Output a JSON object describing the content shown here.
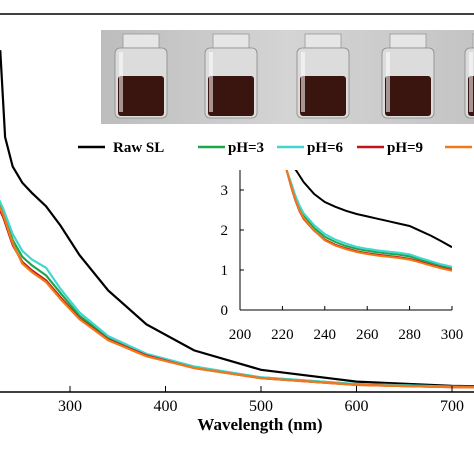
{
  "chart_data": [
    {
      "type": "line",
      "title": "",
      "xlabel": "Wavelength (nm)",
      "ylabel": "",
      "xlim": [
        190,
        750
      ],
      "x_ticks": [
        "300",
        "400",
        "500",
        "600",
        "700"
      ],
      "legend_position": "top, horizontal",
      "grid": false,
      "series": [
        {
          "name": "Raw SL",
          "color": "#000000",
          "x": [
            190,
            225,
            227,
            232,
            240,
            250,
            260,
            275,
            290,
            310,
            340,
            380,
            430,
            500,
            600,
            700,
            750
          ],
          "y": [
            3.95,
            4.02,
            4.02,
            3.0,
            2.65,
            2.46,
            2.34,
            2.18,
            1.95,
            1.6,
            1.18,
            0.78,
            0.47,
            0.24,
            0.1,
            0.05,
            0.04
          ]
        },
        {
          "name": "pH=3",
          "color": "#1aa84a",
          "x": [
            190,
            200,
            210,
            220,
            230,
            240,
            250,
            260,
            275,
            290,
            310,
            340,
            380,
            430,
            500,
            600,
            700,
            750
          ],
          "y": [
            3.2,
            2.95,
            2.62,
            2.34,
            2.1,
            1.78,
            1.58,
            1.48,
            1.36,
            1.15,
            0.88,
            0.62,
            0.42,
            0.27,
            0.15,
            0.07,
            0.04,
            0.03
          ]
        },
        {
          "name": "pH=6",
          "color": "#3fd6d0",
          "x": [
            190,
            200,
            210,
            220,
            230,
            240,
            250,
            260,
            275,
            290,
            310,
            340,
            380,
            430,
            500,
            600,
            700,
            750
          ],
          "y": [
            3.25,
            3.0,
            2.67,
            2.4,
            2.15,
            1.85,
            1.65,
            1.55,
            1.45,
            1.2,
            0.92,
            0.64,
            0.43,
            0.28,
            0.15,
            0.07,
            0.04,
            0.03
          ]
        },
        {
          "name": "pH=9",
          "color": "#c0161c",
          "x": [
            190,
            200,
            210,
            220,
            230,
            240,
            250,
            260,
            275,
            290,
            310,
            340,
            380,
            430,
            500,
            600,
            700,
            750
          ],
          "y": [
            3.15,
            2.9,
            2.58,
            2.3,
            2.05,
            1.72,
            1.52,
            1.42,
            1.3,
            1.1,
            0.85,
            0.6,
            0.41,
            0.26,
            0.14,
            0.06,
            0.035,
            0.03
          ]
        },
        {
          "name": "",
          "color": "#f07a1a",
          "x": [
            190,
            200,
            210,
            220,
            230,
            240,
            250,
            260,
            275,
            290,
            310,
            340,
            380,
            430,
            500,
            600,
            700,
            750
          ],
          "y": [
            3.18,
            2.92,
            2.6,
            2.32,
            2.08,
            1.74,
            1.5,
            1.4,
            1.28,
            1.08,
            0.84,
            0.59,
            0.4,
            0.26,
            0.14,
            0.06,
            0.035,
            0.03
          ]
        }
      ]
    },
    {
      "type": "line",
      "title": "",
      "xlabel": "",
      "ylabel": "",
      "xlim": [
        200,
        300
      ],
      "ylim": [
        0,
        3.5
      ],
      "x_ticks": [
        "200",
        "220",
        "240",
        "260",
        "280",
        "300"
      ],
      "y_ticks": [
        "0",
        "1",
        "2",
        "3"
      ],
      "legend_position": "none",
      "grid": false,
      "series": [
        {
          "name": "Raw SL",
          "color": "#000000",
          "x": [
            225,
            227,
            230,
            235,
            240,
            245,
            250,
            255,
            260,
            265,
            270,
            275,
            280,
            285,
            290,
            295,
            300
          ],
          "y": [
            3.6,
            3.45,
            3.2,
            2.9,
            2.7,
            2.58,
            2.48,
            2.4,
            2.34,
            2.28,
            2.22,
            2.16,
            2.1,
            1.98,
            1.86,
            1.72,
            1.57
          ]
        },
        {
          "name": "pH=3",
          "color": "#1aa84a",
          "x": [
            222,
            224,
            226,
            228,
            230,
            235,
            240,
            245,
            250,
            255,
            260,
            265,
            270,
            275,
            280,
            285,
            290,
            295,
            300
          ],
          "y": [
            3.5,
            3.15,
            2.82,
            2.55,
            2.35,
            2.05,
            1.83,
            1.7,
            1.6,
            1.53,
            1.48,
            1.44,
            1.41,
            1.38,
            1.34,
            1.26,
            1.18,
            1.11,
            1.05
          ]
        },
        {
          "name": "pH=6",
          "color": "#3fd6d0",
          "x": [
            222,
            224,
            226,
            228,
            230,
            235,
            240,
            245,
            250,
            255,
            260,
            265,
            270,
            275,
            280,
            285,
            290,
            295,
            300
          ],
          "y": [
            3.5,
            3.2,
            2.88,
            2.62,
            2.42,
            2.12,
            1.9,
            1.76,
            1.66,
            1.58,
            1.53,
            1.49,
            1.46,
            1.43,
            1.39,
            1.3,
            1.22,
            1.14,
            1.08
          ]
        },
        {
          "name": "pH=9",
          "color": "#c0161c",
          "x": [
            222,
            224,
            226,
            228,
            230,
            235,
            240,
            245,
            250,
            255,
            260,
            265,
            270,
            275,
            280,
            285,
            290,
            295,
            300
          ],
          "y": [
            3.5,
            3.1,
            2.76,
            2.48,
            2.28,
            1.98,
            1.76,
            1.63,
            1.54,
            1.47,
            1.42,
            1.38,
            1.35,
            1.32,
            1.28,
            1.21,
            1.13,
            1.06,
            1.0
          ]
        },
        {
          "name": "",
          "color": "#f07a1a",
          "x": [
            222,
            224,
            226,
            228,
            230,
            235,
            240,
            245,
            250,
            255,
            260,
            265,
            270,
            275,
            280,
            285,
            290,
            295,
            300
          ],
          "y": [
            3.5,
            3.12,
            2.78,
            2.5,
            2.3,
            1.99,
            1.74,
            1.61,
            1.52,
            1.45,
            1.4,
            1.36,
            1.33,
            1.3,
            1.26,
            1.19,
            1.11,
            1.04,
            0.98
          ]
        }
      ]
    }
  ],
  "photo": {
    "description_icon": "sample-vials-photo",
    "background": "#c8c8c8",
    "liquid": "#3a1510",
    "vial_count": 5
  }
}
